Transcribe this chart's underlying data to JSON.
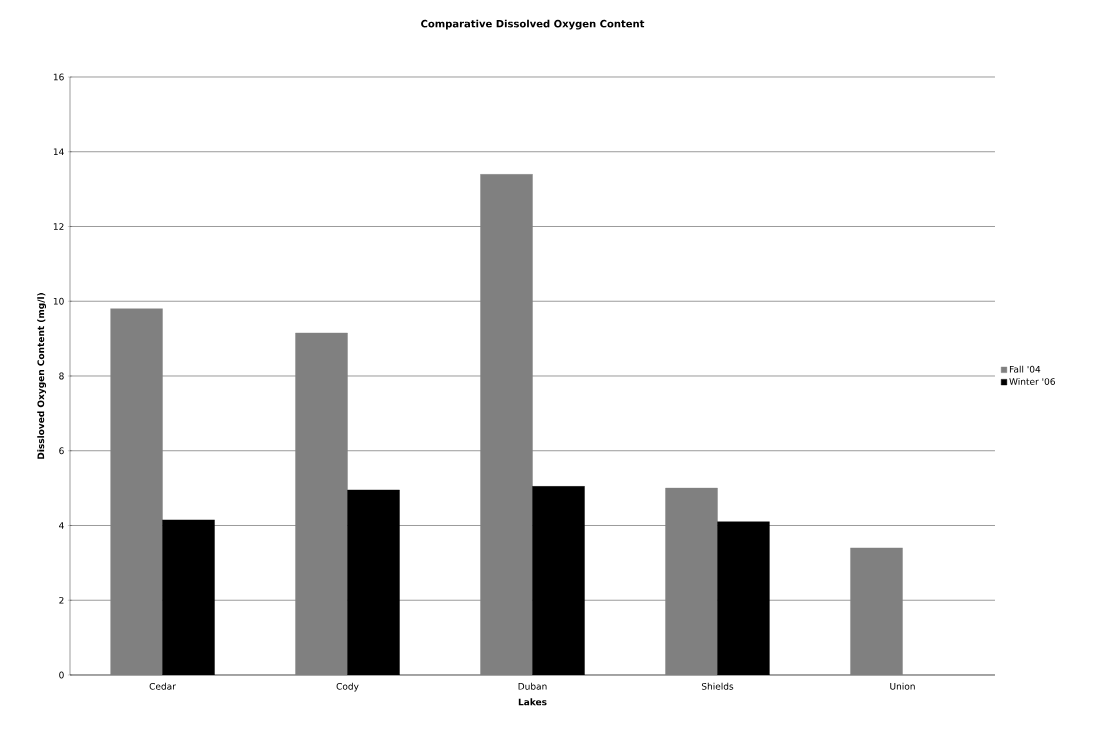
{
  "chart_data": {
    "type": "bar",
    "title": "Comparative Dissolved Oxygen Content",
    "xlabel": "Lakes",
    "ylabel": "Dissloved Oxygen Content (mg/l)",
    "categories": [
      "Cedar",
      "Cody",
      "Duban",
      "Shields",
      "Union"
    ],
    "series": [
      {
        "name": "Fall  '04",
        "color": "#808080",
        "values": [
          9.8,
          9.15,
          13.4,
          5.0,
          3.4
        ]
      },
      {
        "name": "Winter  '06",
        "color": "#000000",
        "values": [
          4.15,
          4.95,
          5.05,
          4.1,
          null
        ]
      }
    ],
    "ylim": [
      0,
      16
    ],
    "yticks": [
      0,
      2,
      4,
      6,
      8,
      10,
      12,
      14,
      16
    ],
    "grid": "y",
    "legend": "right"
  }
}
